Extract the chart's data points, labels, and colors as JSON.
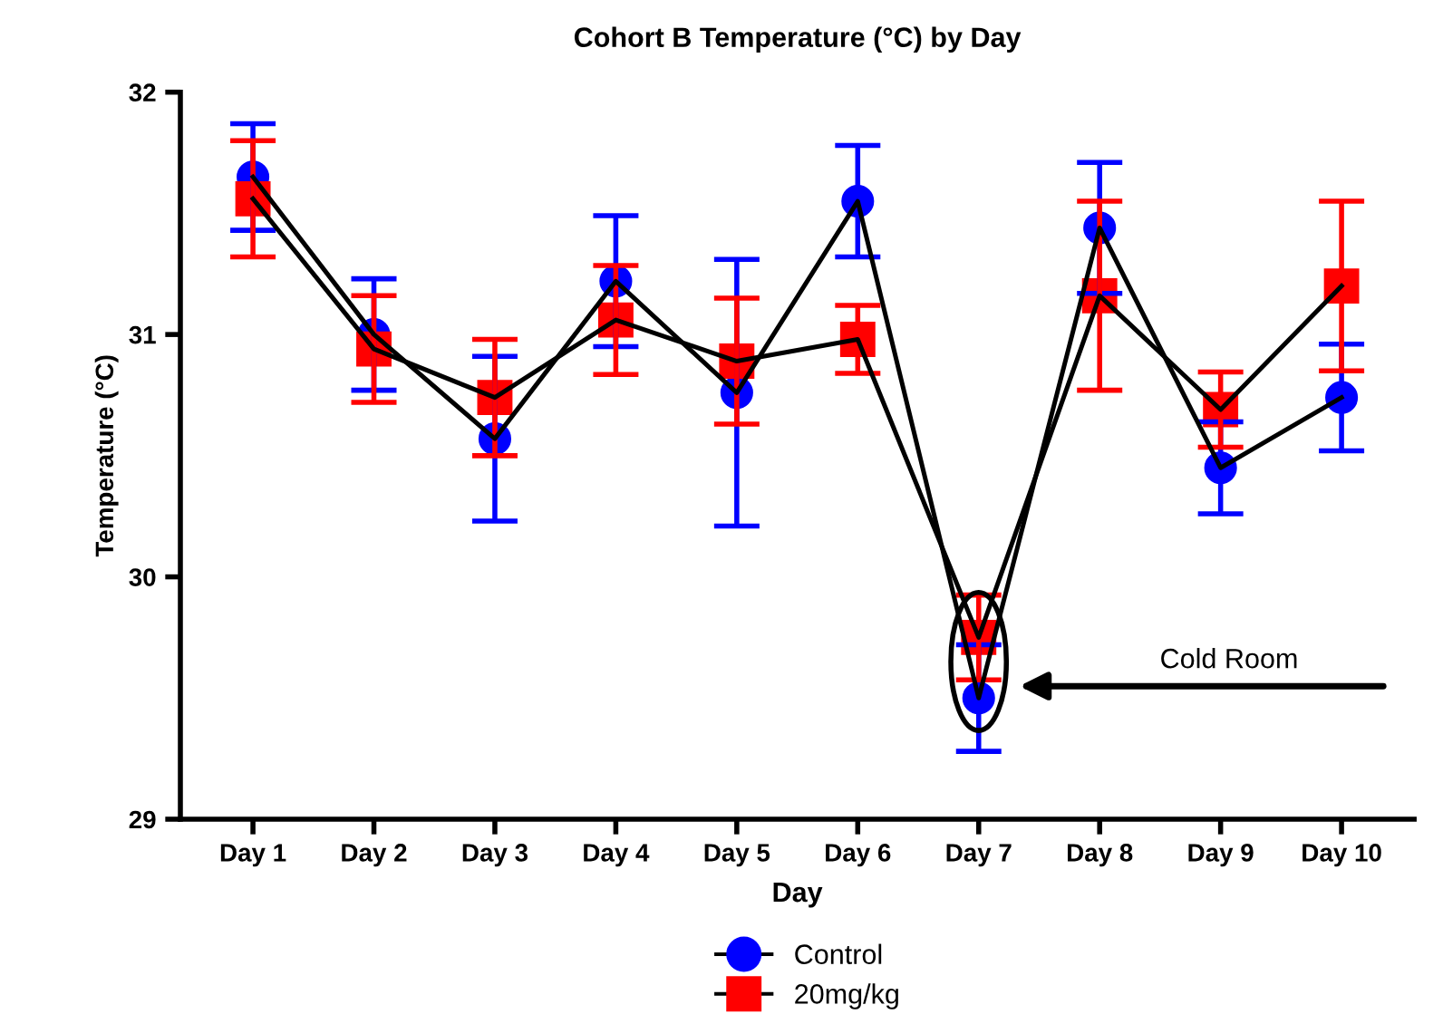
{
  "chart_data": {
    "type": "line",
    "title": "Cohort B Temperature (°C) by Day",
    "xlabel": "Day",
    "ylabel": "Temperature (°C)",
    "categories": [
      "Day 1",
      "Day 2",
      "Day 3",
      "Day 4",
      "Day 5",
      "Day 6",
      "Day 7",
      "Day 8",
      "Day 9",
      "Day 10"
    ],
    "series": [
      {
        "name": "Control",
        "color": "#0000ff",
        "marker": "circle",
        "values": [
          31.65,
          31.0,
          30.57,
          31.22,
          30.76,
          31.55,
          29.5,
          31.44,
          30.45,
          30.74
        ],
        "errors": [
          0.22,
          0.23,
          0.34,
          0.27,
          0.55,
          0.23,
          0.22,
          0.27,
          0.19,
          0.22
        ]
      },
      {
        "name": "20mg/kg",
        "color": "#ff0000",
        "marker": "square",
        "values": [
          31.56,
          30.94,
          30.74,
          31.06,
          30.89,
          30.98,
          29.75,
          31.16,
          30.69,
          31.2
        ],
        "errors": [
          0.24,
          0.22,
          0.24,
          0.225,
          0.26,
          0.14,
          0.175,
          0.39,
          0.155,
          0.35
        ]
      }
    ],
    "ylim": [
      29,
      32
    ],
    "yticks": [
      29,
      30,
      31,
      32
    ],
    "grid": false,
    "legend": "bottom",
    "line_style": "solid",
    "annotations": [
      "Cold Room"
    ]
  }
}
